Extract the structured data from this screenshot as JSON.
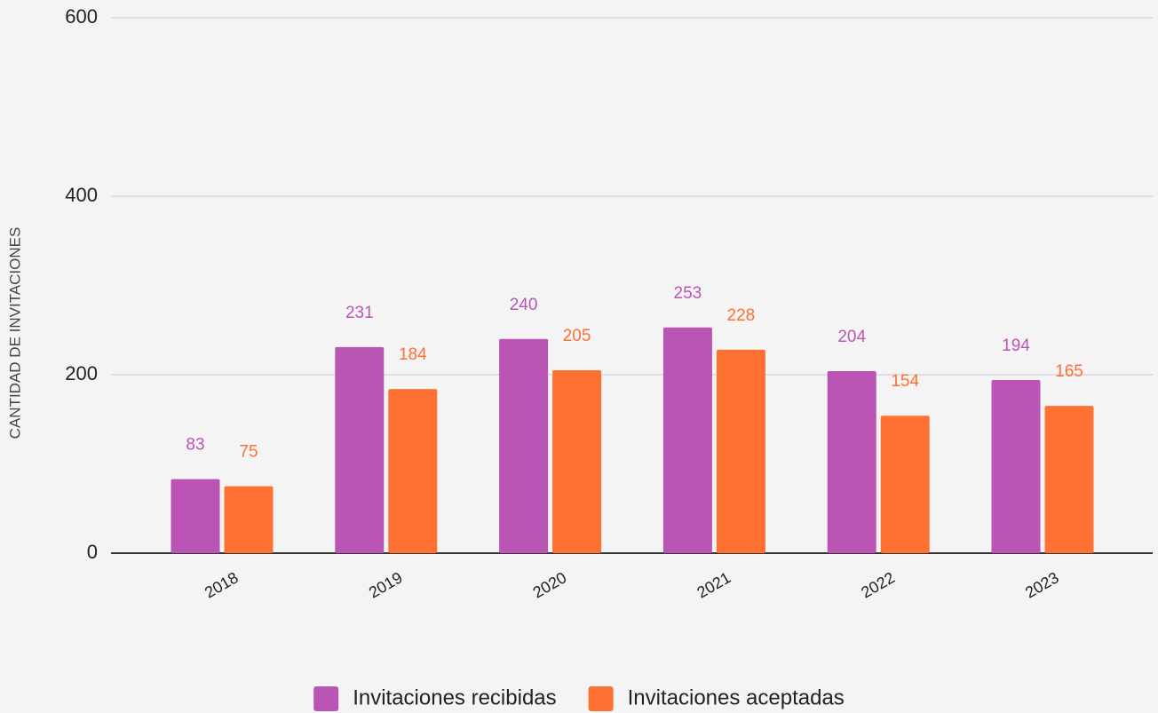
{
  "chart_data": {
    "type": "bar",
    "y_label": "CANTIDAD DE INVITACIONES",
    "categories": [
      "2018",
      "2019",
      "2020",
      "2021",
      "2022",
      "2023"
    ],
    "series": [
      {
        "name": "Invitaciones recibidas",
        "color": "#bb55b5",
        "values": [
          83,
          231,
          240,
          253,
          204,
          194
        ]
      },
      {
        "name": "Invitaciones aceptadas",
        "color": "#ff7033",
        "values": [
          75,
          184,
          205,
          228,
          154,
          165
        ]
      }
    ],
    "ylim": [
      0,
      600
    ],
    "yticks": [
      0,
      200,
      400,
      600
    ],
    "grid": true,
    "legend": "bottom"
  }
}
